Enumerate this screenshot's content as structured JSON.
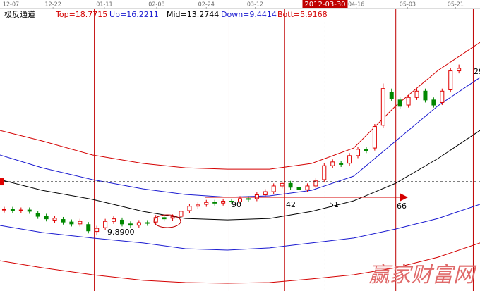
{
  "chart_data": {
    "type": "candlestick",
    "title": "极反通道",
    "indicators": [
      {
        "label": "Top=18.7715",
        "color": "#d40000"
      },
      {
        "label": "Up=16.2211",
        "color": "#1a1ad0"
      },
      {
        "label": "Mid=13.2744",
        "color": "#000000"
      },
      {
        "label": "Down=9.4414",
        "color": "#1a1ad0"
      },
      {
        "label": "Bott=5.9168",
        "color": "#d40000"
      }
    ],
    "xlim": [
      -0.5,
      56.5
    ],
    "ylim": [
      5.5,
      28.5
    ],
    "xticks": [
      {
        "value": 0.8,
        "label": "12-07"
      },
      {
        "value": 5.8,
        "label": "12-22"
      },
      {
        "value": 11.9,
        "label": "01-11"
      },
      {
        "value": 18.1,
        "label": "02-08"
      },
      {
        "value": 24,
        "label": "02-24"
      },
      {
        "value": 29.8,
        "label": "03-12"
      },
      {
        "value": 41.8,
        "label": "04-16"
      },
      {
        "value": 47.9,
        "label": "05-03"
      },
      {
        "value": 53.6,
        "label": "05-21"
      }
    ],
    "crosshair": {
      "x": 38.1,
      "y": 14.13,
      "label": "2012-03-30"
    },
    "cycle_lines": [
      10.7,
      26.7,
      33.3,
      46.5,
      55.7
    ],
    "open": [
      11.9,
      11.95,
      11.85,
      11.9,
      11.6,
      11.4,
      11.1,
      11.15,
      10.95,
      10.8,
      10.75,
      10.2,
      10.5,
      11.0,
      11.1,
      10.8,
      10.7,
      10.9,
      10.95,
      11.3,
      11.25,
      11.4,
      11.85,
      12.2,
      12.35,
      12.5,
      12.45,
      12.6,
      12.55,
      12.8,
      12.8,
      13.1,
      13.35,
      13.8,
      14.0,
      13.7,
      13.5,
      13.8,
      14.3,
      15.4,
      15.6,
      15.6,
      16.2,
      16.7,
      16.8,
      18.6,
      21.2,
      20.6,
      20.2,
      20.8,
      21.3,
      20.6,
      20.4,
      21.4,
      22.9
    ],
    "high": [
      12.15,
      12.15,
      12.1,
      12.1,
      11.8,
      11.6,
      11.45,
      11.35,
      11.15,
      11.2,
      10.95,
      10.65,
      11.2,
      11.4,
      11.3,
      11.0,
      11.1,
      11.1,
      11.5,
      11.5,
      11.55,
      12.0,
      12.4,
      12.5,
      12.7,
      12.7,
      12.8,
      12.8,
      13.0,
      13.0,
      13.3,
      13.55,
      14.0,
      14.2,
      14.2,
      13.9,
      14.0,
      14.4,
      15.6,
      15.9,
      15.8,
      16.4,
      16.9,
      16.9,
      18.7,
      21.9,
      21.5,
      20.8,
      21.0,
      21.5,
      21.5,
      20.8,
      21.5,
      23.1,
      23.4
    ],
    "low": [
      11.7,
      11.65,
      11.65,
      11.6,
      11.2,
      11.0,
      10.9,
      10.75,
      10.6,
      10.6,
      10.05,
      9.89,
      10.3,
      10.8,
      10.6,
      10.5,
      10.5,
      10.65,
      10.75,
      11.0,
      11.05,
      11.2,
      11.65,
      12.0,
      12.15,
      12.25,
      12.25,
      12.35,
      12.35,
      12.55,
      12.6,
      12.9,
      13.15,
      13.6,
      13.5,
      13.3,
      13.3,
      13.6,
      14.1,
      15.2,
      15.3,
      15.4,
      16.0,
      16.4,
      16.6,
      18.4,
      20.5,
      19.9,
      20.0,
      20.6,
      20.4,
      20.0,
      20.2,
      21.2,
      22.7
    ],
    "close": [
      11.95,
      11.85,
      11.9,
      11.8,
      11.4,
      11.2,
      11.25,
      10.95,
      10.8,
      11.0,
      10.25,
      10.45,
      11.0,
      11.2,
      10.8,
      10.7,
      10.9,
      10.85,
      11.3,
      11.2,
      11.35,
      11.8,
      12.2,
      12.3,
      12.5,
      12.45,
      12.6,
      12.55,
      12.8,
      12.75,
      13.1,
      13.35,
      13.8,
      14.0,
      13.7,
      13.5,
      13.8,
      14.2,
      15.4,
      15.7,
      15.5,
      16.2,
      16.7,
      16.6,
      18.5,
      21.5,
      20.7,
      20.1,
      20.8,
      21.3,
      20.6,
      20.2,
      21.3,
      22.9,
      23.1
    ],
    "band_x": [
      -0.5,
      4.5,
      10.5,
      16.5,
      21.5,
      26.5,
      31.5,
      36.5,
      41.5,
      46.5,
      51.5,
      56.5
    ],
    "series": [
      {
        "name": "Top",
        "color": "#d40000",
        "values": [
          18.19,
          17.36,
          16.25,
          15.58,
          15.24,
          15.13,
          15.13,
          15.58,
          16.8,
          20.14,
          22.93,
          25.15
        ]
      },
      {
        "name": "Up",
        "color": "#1a1ad0",
        "values": [
          16.25,
          15.24,
          14.3,
          13.57,
          13.13,
          12.91,
          13.02,
          13.46,
          14.58,
          17.36,
          20.14,
          22.37
        ]
      },
      {
        "name": "Mid",
        "color": "#000000",
        "values": [
          14.3,
          13.46,
          12.74,
          11.79,
          11.23,
          11.12,
          11.23,
          11.79,
          12.63,
          14.02,
          15.97,
          18.19
        ]
      },
      {
        "name": "Down",
        "color": "#1a1ad0",
        "values": [
          10.68,
          10.12,
          9.68,
          9.29,
          8.84,
          8.73,
          8.9,
          9.29,
          9.68,
          10.4,
          11.23,
          12.35
        ]
      },
      {
        "name": "Bott",
        "color": "#d40000",
        "values": [
          7.89,
          7.34,
          6.78,
          6.34,
          6.17,
          6.11,
          6.17,
          6.45,
          6.78,
          7.34,
          8.17,
          9.29
        ]
      }
    ],
    "annotations": [
      "9.8900",
      "90",
      "42",
      "51",
      "66",
      "29"
    ],
    "watermark": "赢家财富网"
  }
}
